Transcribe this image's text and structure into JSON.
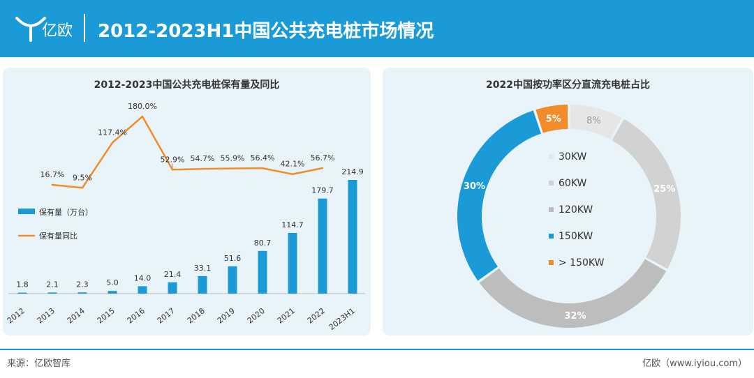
{
  "header": {
    "brand": "亿欧",
    "title": "2012-2023H1中国公共充电桩市场情况"
  },
  "colors": {
    "header_bg": "#1a9bd7",
    "bar": "#1a9bd7",
    "line": "#f28c28"
  },
  "chart_data": [
    {
      "type": "bar",
      "title": "2012-2023中国公共充电桩保有量及同比",
      "categories": [
        "2012",
        "2013",
        "2014",
        "2015",
        "2016",
        "2017",
        "2018",
        "2019",
        "2020",
        "2021",
        "2022",
        "2023H1"
      ],
      "series": [
        {
          "name": "保有量（万台）",
          "type": "bar",
          "values": [
            1.8,
            2.1,
            2.3,
            5.0,
            14.0,
            21.4,
            33.1,
            51.6,
            80.7,
            114.7,
            179.7,
            214.9
          ],
          "labels": [
            "1.8",
            "2.1",
            "2.3",
            "5.0",
            "14.0",
            "21.4",
            "33.1",
            "51.6",
            "80.7",
            "114.7",
            "179.7",
            "214.9"
          ]
        },
        {
          "name": "保有量同比",
          "type": "line",
          "values": [
            null,
            16.7,
            9.5,
            117.4,
            180.0,
            52.9,
            54.7,
            55.9,
            56.4,
            42.1,
            56.7,
            null
          ],
          "labels": [
            "",
            "16.7%",
            "9.5%",
            "117.4%",
            "180.0%",
            "52.9%",
            "54.7%",
            "55.9%",
            "56.4%",
            "42.1%",
            "56.7%",
            ""
          ]
        }
      ],
      "legend": "left"
    },
    {
      "type": "pie",
      "title": "2022中国按功率区分直流充电桩占比",
      "categories": [
        "30KW",
        "60KW",
        "120KW",
        "150KW",
        "> 150KW"
      ],
      "values": [
        8,
        25,
        32,
        30,
        5
      ],
      "labels": [
        "8%",
        "25%",
        "32%",
        "30%",
        "5%"
      ],
      "colors": [
        "#e6e6e6",
        "#d2d2d2",
        "#bdbdbd",
        "#1a9bd7",
        "#f28c28"
      ],
      "legend": "center"
    }
  ],
  "footer": {
    "source": "来源：亿欧智库",
    "site": "亿欧（www.iyiou.com）"
  }
}
